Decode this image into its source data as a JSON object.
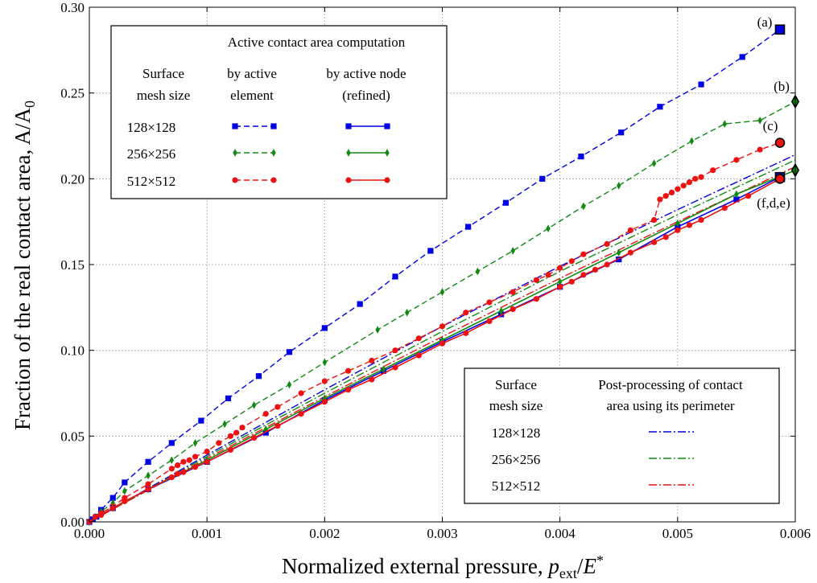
{
  "chart_data": {
    "type": "line",
    "xlabel_main": "Normalized external pressure, ",
    "xlabel_var": "p",
    "xlabel_sub": "ext",
    "xlabel_tail": "/",
    "xlabel_var2": "E",
    "xlabel_sup": "*",
    "ylabel": "Fraction of the real contact area, A/A",
    "ylabel_sub": "0",
    "xlim": [
      0,
      0.006
    ],
    "ylim": [
      0,
      0.3
    ],
    "xticks": [
      "0.000",
      "0.001",
      "0.002",
      "0.003",
      "0.004",
      "0.005",
      "0.006"
    ],
    "yticks": [
      "0.00",
      "0.05",
      "0.10",
      "0.15",
      "0.20",
      "0.25",
      "0.30"
    ],
    "grid": true,
    "colors": {
      "blue": "#0000e6",
      "green": "#128a12",
      "red": "#ee1111"
    },
    "series": [
      {
        "color": "blue",
        "marker": "square",
        "dash": "dashed",
        "x": [
          0.0,
          3e-05,
          6e-05,
          0.0001,
          0.0002,
          0.0003,
          0.0005,
          0.0007,
          0.00095,
          0.00118,
          0.00144,
          0.0017,
          0.002,
          0.0023,
          0.0026,
          0.0029,
          0.00322,
          0.00354,
          0.00385,
          0.00418,
          0.00452,
          0.00485,
          0.0052,
          0.00555,
          0.00587
        ],
        "y": [
          0.0,
          0.0015,
          0.003,
          0.007,
          0.014,
          0.023,
          0.035,
          0.046,
          0.059,
          0.072,
          0.085,
          0.099,
          0.113,
          0.127,
          0.143,
          0.158,
          0.172,
          0.186,
          0.2,
          0.213,
          0.227,
          0.242,
          0.255,
          0.271,
          0.287
        ]
      },
      {
        "color": "green",
        "marker": "diamond",
        "dash": "dashed",
        "x": [
          0.0,
          5e-05,
          0.0001,
          0.0002,
          0.0003,
          0.0005,
          0.0007,
          0.0009,
          0.00115,
          0.0014,
          0.0017,
          0.002,
          0.00245,
          0.0027,
          0.003,
          0.0033,
          0.0036,
          0.0039,
          0.0042,
          0.0045,
          0.0048,
          0.00512,
          0.0054,
          0.0057,
          0.006
        ],
        "y": [
          0.0,
          0.003,
          0.006,
          0.011,
          0.018,
          0.027,
          0.036,
          0.046,
          0.057,
          0.068,
          0.08,
          0.093,
          0.112,
          0.122,
          0.134,
          0.146,
          0.158,
          0.171,
          0.184,
          0.196,
          0.209,
          0.222,
          0.232,
          0.234,
          0.245
        ]
      },
      {
        "color": "red",
        "marker": "circle",
        "dash": "dashed",
        "x": [
          0.0,
          5e-05,
          0.0001,
          0.0002,
          0.0003,
          0.0005,
          0.0007,
          0.00075,
          0.0008,
          0.00085,
          0.0009,
          0.001,
          0.0011,
          0.0012,
          0.00125,
          0.0013,
          0.0015,
          0.0016,
          0.0018,
          0.002,
          0.0022,
          0.0024,
          0.0026,
          0.0028,
          0.003,
          0.0032,
          0.0034,
          0.0036,
          0.0038,
          0.0039,
          0.004,
          0.0041,
          0.0042,
          0.0044,
          0.0046,
          0.0048,
          0.00485,
          0.0049,
          0.00495,
          0.005,
          0.00505,
          0.0051,
          0.00515,
          0.0052,
          0.0053,
          0.0055,
          0.0057,
          0.00587
        ],
        "y": [
          0.0,
          0.003,
          0.005,
          0.009,
          0.014,
          0.022,
          0.031,
          0.033,
          0.035,
          0.036,
          0.038,
          0.041,
          0.046,
          0.05,
          0.052,
          0.055,
          0.063,
          0.067,
          0.075,
          0.082,
          0.088,
          0.094,
          0.1,
          0.107,
          0.114,
          0.122,
          0.128,
          0.134,
          0.141,
          0.144,
          0.148,
          0.152,
          0.156,
          0.162,
          0.17,
          0.176,
          0.188,
          0.19,
          0.192,
          0.194,
          0.196,
          0.198,
          0.2,
          0.201,
          0.205,
          0.211,
          0.217,
          0.221
        ]
      },
      {
        "color": "blue",
        "marker": "square",
        "dash": "solid",
        "x": [
          0.0,
          0.0002,
          0.0005,
          0.001,
          0.0015,
          0.002,
          0.0025,
          0.003,
          0.0035,
          0.004,
          0.0045,
          0.005,
          0.0055,
          0.00587
        ],
        "y": [
          0.0,
          0.008,
          0.019,
          0.035,
          0.052,
          0.071,
          0.088,
          0.105,
          0.121,
          0.137,
          0.153,
          0.172,
          0.188,
          0.201
        ]
      },
      {
        "color": "green",
        "marker": "diamond",
        "dash": "solid",
        "x": [
          0.0,
          0.0002,
          0.0005,
          0.001,
          0.0015,
          0.002,
          0.0025,
          0.003,
          0.0035,
          0.004,
          0.0045,
          0.005,
          0.0055,
          0.006
        ],
        "y": [
          0.0,
          0.008,
          0.019,
          0.036,
          0.054,
          0.072,
          0.089,
          0.106,
          0.123,
          0.14,
          0.157,
          0.174,
          0.191,
          0.205
        ]
      },
      {
        "color": "red",
        "marker": "circle",
        "dash": "solid",
        "x": [
          0.0,
          0.0001,
          0.0002,
          0.0003,
          0.0005,
          0.0007,
          0.00075,
          0.0008,
          0.0009,
          0.001,
          0.0012,
          0.0014,
          0.0016,
          0.0018,
          0.002,
          0.0022,
          0.0024,
          0.0026,
          0.0028,
          0.003,
          0.0032,
          0.0034,
          0.0036,
          0.0038,
          0.004,
          0.0041,
          0.0042,
          0.0043,
          0.0044,
          0.0046,
          0.0048,
          0.0049,
          0.005,
          0.0051,
          0.0052,
          0.0054,
          0.0056,
          0.00587
        ],
        "y": [
          0.0,
          0.004,
          0.008,
          0.012,
          0.019,
          0.026,
          0.028,
          0.029,
          0.032,
          0.035,
          0.042,
          0.049,
          0.056,
          0.063,
          0.07,
          0.077,
          0.083,
          0.09,
          0.097,
          0.104,
          0.11,
          0.117,
          0.124,
          0.13,
          0.137,
          0.14,
          0.144,
          0.147,
          0.15,
          0.157,
          0.163,
          0.166,
          0.17,
          0.173,
          0.176,
          0.183,
          0.19,
          0.2
        ]
      },
      {
        "color": "blue",
        "marker": "none",
        "dash": "dashdot",
        "x": [
          0.0,
          0.001,
          0.002,
          0.003,
          0.004,
          0.005,
          0.006
        ],
        "y": [
          0.0,
          0.039,
          0.077,
          0.114,
          0.149,
          0.182,
          0.214
        ]
      },
      {
        "color": "green",
        "marker": "none",
        "dash": "dashdot",
        "x": [
          0.0,
          0.001,
          0.002,
          0.003,
          0.004,
          0.005,
          0.006
        ],
        "y": [
          0.0,
          0.038,
          0.075,
          0.111,
          0.146,
          0.179,
          0.211
        ]
      },
      {
        "color": "red",
        "marker": "none",
        "dash": "dashdot",
        "x": [
          0.0,
          0.001,
          0.002,
          0.003,
          0.004,
          0.005,
          0.006
        ],
        "y": [
          0.0,
          0.037,
          0.073,
          0.108,
          0.142,
          0.175,
          0.207
        ]
      }
    ],
    "endpoints": [
      {
        "x": 0.00587,
        "y": 0.287,
        "marker": "square",
        "color": "blue"
      },
      {
        "x": 0.006,
        "y": 0.245,
        "marker": "diamond",
        "color": "green"
      },
      {
        "x": 0.00587,
        "y": 0.221,
        "marker": "circle",
        "color": "red"
      },
      {
        "x": 0.00587,
        "y": 0.201,
        "marker": "square",
        "color": "blue"
      },
      {
        "x": 0.006,
        "y": 0.205,
        "marker": "diamond",
        "color": "green"
      },
      {
        "x": 0.00587,
        "y": 0.2,
        "marker": "circle",
        "color": "red"
      }
    ],
    "annotations": [
      "(a)",
      "(b)",
      "(c)",
      "(f,d,e)"
    ],
    "legend1": {
      "title": "Active contact area computation",
      "col1_line1": "Surface",
      "col1_line2": "mesh size",
      "col2_line1": "by active",
      "col2_line2": "element",
      "col3_line1": "by active node",
      "col3_line2": "(refined)",
      "rows": [
        "128×128",
        "256×256",
        "512×512"
      ]
    },
    "legend2": {
      "col1_line1": "Surface",
      "col1_line2": "mesh size",
      "col2_line1": "Post-processing of contact",
      "col2_line2": "area using its perimeter",
      "rows": [
        "128×128",
        "256×256",
        "512×512"
      ]
    }
  }
}
